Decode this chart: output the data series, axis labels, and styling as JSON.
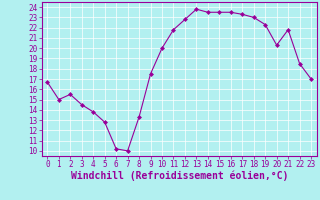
{
  "x": [
    0,
    1,
    2,
    3,
    4,
    5,
    6,
    7,
    8,
    9,
    10,
    11,
    12,
    13,
    14,
    15,
    16,
    17,
    18,
    19,
    20,
    21,
    22,
    23
  ],
  "y": [
    16.7,
    15.0,
    15.5,
    14.5,
    13.8,
    12.8,
    10.2,
    10.0,
    13.3,
    17.5,
    20.0,
    21.8,
    22.8,
    23.8,
    23.5,
    23.5,
    23.5,
    23.3,
    23.0,
    22.3,
    20.3,
    21.8,
    18.5,
    17.0
  ],
  "line_color": "#990099",
  "marker": "D",
  "marker_size": 2,
  "bg_color": "#b2f0f0",
  "grid_color": "#c8e8e8",
  "xlabel": "Windchill (Refroidissement éolien,°C)",
  "ylabel": "",
  "title": "",
  "xlim": [
    -0.5,
    23.5
  ],
  "ylim": [
    9.5,
    24.5
  ],
  "yticks": [
    10,
    11,
    12,
    13,
    14,
    15,
    16,
    17,
    18,
    19,
    20,
    21,
    22,
    23,
    24
  ],
  "xticks": [
    0,
    1,
    2,
    3,
    4,
    5,
    6,
    7,
    8,
    9,
    10,
    11,
    12,
    13,
    14,
    15,
    16,
    17,
    18,
    19,
    20,
    21,
    22,
    23
  ],
  "tick_color": "#990099",
  "tick_fontsize": 5.5,
  "xlabel_fontsize": 7.0,
  "label_color": "#990099",
  "spine_color": "#990099"
}
